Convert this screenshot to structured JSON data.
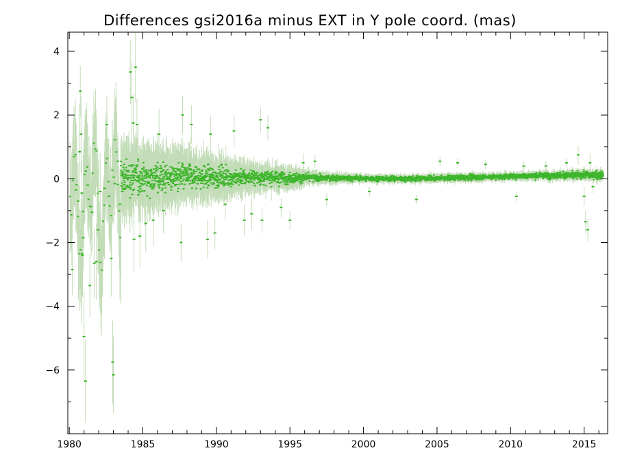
{
  "chart_data": {
    "type": "scatter",
    "title": "Differences gsi2016a minus EXT in Y pole coord. (mas)",
    "xlabel": "",
    "ylabel": "",
    "xlim": [
      1979.9,
      2016.6
    ],
    "ylim": [
      -8.0,
      4.6
    ],
    "xticks_major": [
      1980,
      1985,
      1990,
      1995,
      2000,
      2005,
      2010,
      2015
    ],
    "xtick_labels": [
      "1980",
      "1985",
      "1990",
      "1995",
      "2000",
      "2005",
      "2010",
      "2015"
    ],
    "yticks_major": [
      -6,
      -4,
      -2,
      0,
      2,
      4
    ],
    "ytick_labels": [
      "−6",
      "−4",
      "−2",
      "0",
      "2",
      "4"
    ],
    "grid": false,
    "legend": "none",
    "colors": {
      "points": "#3cb52a",
      "error_bars": "#c3dcb8",
      "axes": "#000000"
    },
    "series": [
      {
        "name": "",
        "description_of_values": "y difference with error bar half-width per epoch",
        "points": [
          [
            1980.2,
            -2.85,
            0.8
          ],
          [
            1980.45,
            -0.35,
            1.3
          ],
          [
            1980.6,
            -0.7,
            1.2
          ],
          [
            1980.7,
            0.85,
            1.5
          ],
          [
            1980.75,
            2.75,
            0.8
          ],
          [
            1980.8,
            1.4,
            1.2
          ],
          [
            1980.85,
            -0.45,
            1.0
          ],
          [
            1980.9,
            -2.4,
            1.3
          ],
          [
            1980.95,
            -1.85,
            1.0
          ],
          [
            1981.0,
            -4.95,
            1.4
          ],
          [
            1981.1,
            -6.35,
            1.3
          ],
          [
            1981.25,
            -0.2,
            1.1
          ],
          [
            1981.4,
            -3.35,
            1.0
          ],
          [
            1981.55,
            -1.05,
            1.2
          ],
          [
            1981.7,
            -2.65,
            1.1
          ],
          [
            1981.85,
            -2.6,
            1.2
          ],
          [
            1981.95,
            -1.6,
            1.3
          ],
          [
            1982.1,
            -0.4,
            1.2
          ],
          [
            1982.4,
            -0.3,
            1.0
          ],
          [
            1982.55,
            1.7,
            0.9
          ],
          [
            1982.7,
            -0.55,
            1.3
          ],
          [
            1982.85,
            -2.5,
            1.2
          ],
          [
            1982.95,
            -5.75,
            1.3
          ],
          [
            1983.0,
            -6.15,
            1.2
          ],
          [
            1983.1,
            -0.15,
            1.0
          ],
          [
            1983.3,
            0.55,
            0.9
          ],
          [
            1983.45,
            -0.8,
            1.1
          ],
          [
            1983.6,
            -0.4,
            1.0
          ],
          [
            1983.75,
            -0.3,
            1.2
          ],
          [
            1983.9,
            -0.25,
            1.1
          ],
          [
            1984.05,
            0.1,
            0.9
          ],
          [
            1984.15,
            3.35,
            1.0
          ],
          [
            1984.25,
            2.55,
            1.1
          ],
          [
            1984.35,
            1.75,
            0.9
          ],
          [
            1984.5,
            3.5,
            1.1
          ],
          [
            1984.6,
            1.7,
            0.8
          ],
          [
            1984.4,
            -1.9,
            1.0
          ],
          [
            1984.7,
            -0.5,
            0.9
          ],
          [
            1984.8,
            -1.8,
            1.0
          ],
          [
            1985.2,
            -1.4,
            0.9
          ],
          [
            1985.7,
            -1.3,
            0.8
          ],
          [
            1986.1,
            1.4,
            0.8
          ],
          [
            1986.4,
            -1.0,
            0.7
          ],
          [
            1987.6,
            -2.0,
            0.6
          ],
          [
            1987.7,
            2.0,
            0.6
          ],
          [
            1988.3,
            1.7,
            0.6
          ],
          [
            1989.4,
            -1.9,
            0.6
          ],
          [
            1989.6,
            1.4,
            0.6
          ],
          [
            1989.9,
            -1.7,
            0.5
          ],
          [
            1990.6,
            -0.8,
            0.5
          ],
          [
            1991.2,
            1.5,
            0.5
          ],
          [
            1991.9,
            -1.3,
            0.5
          ],
          [
            1992.4,
            -1.1,
            0.5
          ],
          [
            1993.0,
            1.85,
            0.4
          ],
          [
            1993.1,
            -1.3,
            0.4
          ],
          [
            1993.5,
            1.6,
            0.4
          ],
          [
            1994.4,
            -0.9,
            0.3
          ],
          [
            1995.0,
            -1.3,
            0.3
          ],
          [
            1995.9,
            0.5,
            0.3
          ],
          [
            1996.7,
            0.55,
            0.2
          ],
          [
            1997.5,
            -0.65,
            0.2
          ],
          [
            2000.4,
            -0.4,
            0.15
          ],
          [
            2003.6,
            -0.65,
            0.15
          ],
          [
            2005.2,
            0.55,
            0.15
          ],
          [
            2006.4,
            0.5,
            0.15
          ],
          [
            2008.3,
            0.45,
            0.15
          ],
          [
            2010.4,
            -0.55,
            0.15
          ],
          [
            2010.9,
            0.4,
            0.15
          ],
          [
            2012.4,
            0.4,
            0.15
          ],
          [
            2013.8,
            0.5,
            0.15
          ],
          [
            2014.6,
            0.75,
            0.3
          ],
          [
            2015.0,
            -0.55,
            0.3
          ],
          [
            2015.1,
            -1.35,
            0.35
          ],
          [
            2015.25,
            -1.6,
            0.35
          ],
          [
            2015.4,
            0.5,
            0.3
          ],
          [
            2015.6,
            -0.25,
            0.2
          ]
        ],
        "noise_envelope": [
          [
            1983.5,
            0.7,
            0.9
          ],
          [
            1985.0,
            0.6,
            0.8
          ],
          [
            1987.0,
            0.55,
            0.7
          ],
          [
            1989.0,
            0.45,
            0.6
          ],
          [
            1991.0,
            0.35,
            0.45
          ],
          [
            1993.0,
            0.28,
            0.35
          ],
          [
            1995.0,
            0.22,
            0.28
          ],
          [
            1996.8,
            0.12,
            0.15
          ],
          [
            2000.0,
            0.1,
            0.1
          ],
          [
            2005.0,
            0.1,
            0.1
          ],
          [
            2010.0,
            0.1,
            0.1
          ],
          [
            2014.0,
            0.13,
            0.12
          ],
          [
            2016.3,
            0.15,
            0.12
          ]
        ],
        "noise_offset": [
          [
            1983.5,
            0.05
          ],
          [
            1990.0,
            0.05
          ],
          [
            1996.0,
            0.03
          ],
          [
            2003.0,
            0.0
          ],
          [
            2008.0,
            0.05
          ],
          [
            2012.0,
            0.1
          ],
          [
            2016.3,
            0.12
          ]
        ]
      }
    ]
  }
}
